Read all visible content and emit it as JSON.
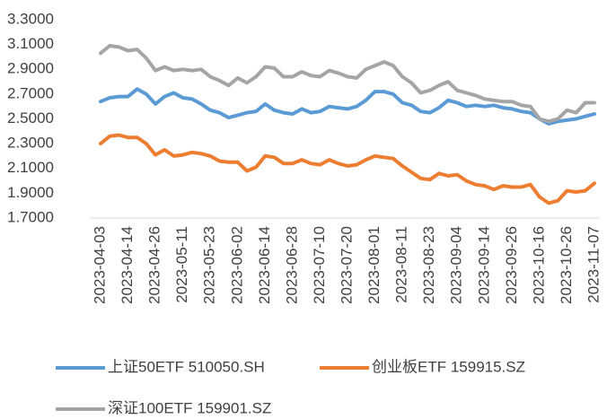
{
  "chart_data": {
    "type": "line",
    "categories": [
      "2023-04-03",
      null,
      null,
      "2023-04-14",
      null,
      null,
      "2023-04-26",
      null,
      null,
      "2023-05-11",
      null,
      null,
      "2023-05-23",
      null,
      null,
      "2023-06-02",
      null,
      null,
      "2023-06-14",
      null,
      null,
      "2023-06-28",
      null,
      null,
      "2023-07-10",
      null,
      null,
      "2023-07-20",
      null,
      null,
      "2023-08-01",
      null,
      null,
      "2023-08-11",
      null,
      null,
      "2023-08-23",
      null,
      null,
      "2023-09-04",
      null,
      null,
      "2023-09-14",
      null,
      null,
      "2023-09-26",
      null,
      null,
      "2023-10-16",
      null,
      null,
      "2023-10-26",
      null,
      null,
      "2023-11-07"
    ],
    "series": [
      {
        "name": "上证50ETF 510050.SH",
        "color": "#5b9bd5",
        "values": [
          2.64,
          2.67,
          2.68,
          2.68,
          2.74,
          2.7,
          2.62,
          2.68,
          2.71,
          2.67,
          2.66,
          2.62,
          2.57,
          2.55,
          2.51,
          2.53,
          2.55,
          2.56,
          2.62,
          2.57,
          2.55,
          2.54,
          2.58,
          2.55,
          2.56,
          2.6,
          2.59,
          2.58,
          2.6,
          2.65,
          2.72,
          2.72,
          2.7,
          2.63,
          2.61,
          2.56,
          2.55,
          2.59,
          2.65,
          2.63,
          2.6,
          2.61,
          2.6,
          2.61,
          2.59,
          2.58,
          2.56,
          2.55,
          2.5,
          2.46,
          2.48,
          2.49,
          2.5,
          2.52,
          2.54
        ]
      },
      {
        "name": "创业板ETF 159915.SZ",
        "color": "#ed7d31",
        "values": [
          2.3,
          2.36,
          2.37,
          2.35,
          2.35,
          2.3,
          2.21,
          2.25,
          2.2,
          2.21,
          2.23,
          2.22,
          2.2,
          2.16,
          2.15,
          2.15,
          2.08,
          2.11,
          2.2,
          2.19,
          2.14,
          2.14,
          2.17,
          2.14,
          2.13,
          2.17,
          2.14,
          2.12,
          2.13,
          2.17,
          2.2,
          2.19,
          2.18,
          2.12,
          2.07,
          2.02,
          2.01,
          2.06,
          2.04,
          2.05,
          2.0,
          1.97,
          1.96,
          1.93,
          1.96,
          1.95,
          1.95,
          1.97,
          1.87,
          1.82,
          1.84,
          1.92,
          1.91,
          1.92,
          1.98
        ]
      },
      {
        "name": "深证100ETF 159901.SZ",
        "color": "#a5a5a5",
        "values": [
          3.03,
          3.09,
          3.08,
          3.05,
          3.06,
          2.99,
          2.89,
          2.92,
          2.89,
          2.9,
          2.89,
          2.9,
          2.84,
          2.81,
          2.77,
          2.83,
          2.79,
          2.84,
          2.92,
          2.91,
          2.84,
          2.84,
          2.88,
          2.85,
          2.84,
          2.89,
          2.87,
          2.84,
          2.83,
          2.9,
          2.93,
          2.96,
          2.93,
          2.84,
          2.79,
          2.71,
          2.73,
          2.77,
          2.8,
          2.73,
          2.71,
          2.69,
          2.66,
          2.65,
          2.64,
          2.64,
          2.61,
          2.6,
          2.5,
          2.48,
          2.5,
          2.57,
          2.55,
          2.63,
          2.63
        ]
      }
    ],
    "ylim": [
      1.7,
      3.3
    ],
    "yticks": [
      {
        "value": 1.7,
        "label": "1.7000"
      },
      {
        "value": 1.9,
        "label": "1.9000"
      },
      {
        "value": 2.1,
        "label": "2.1000"
      },
      {
        "value": 2.3,
        "label": "2.3000"
      },
      {
        "value": 2.5,
        "label": "2.5000"
      },
      {
        "value": 2.7,
        "label": "2.7000"
      },
      {
        "value": 2.9,
        "label": "2.9000"
      },
      {
        "value": 3.1,
        "label": "3.1000"
      },
      {
        "value": 3.3,
        "label": "3.3000"
      }
    ],
    "grid": false,
    "legend": "bottom"
  }
}
